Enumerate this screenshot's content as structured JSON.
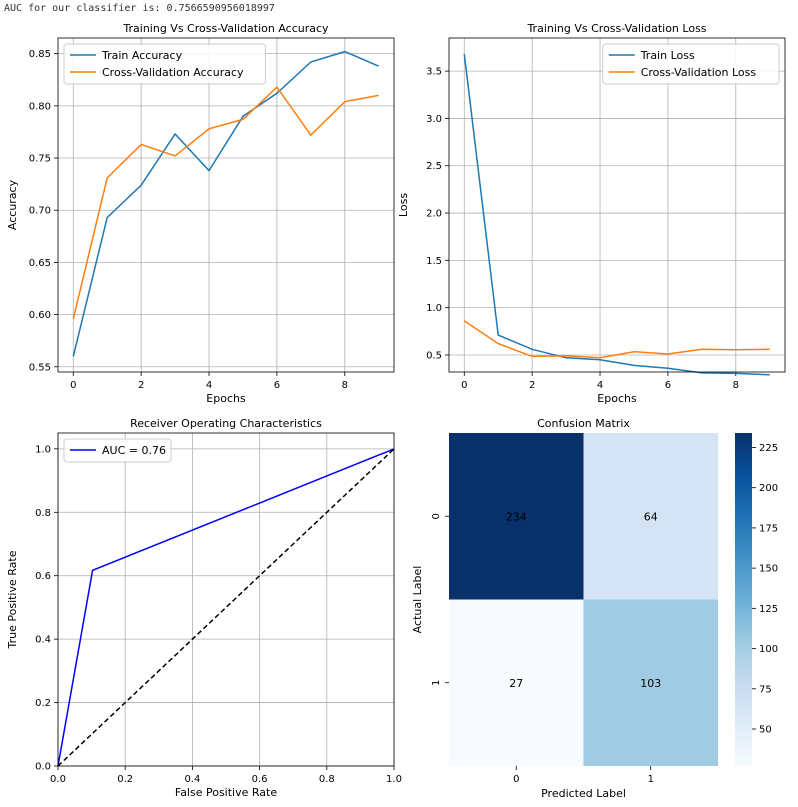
{
  "log_line": "AUC for our classifier is: 0.7566590956018997",
  "colors": {
    "blue": "#1f77b4",
    "orange": "#ff7f0e",
    "roc": "#0000ff",
    "diag": "#000000"
  },
  "chart_data": [
    {
      "type": "line",
      "title": "Training Vs Cross-Validation Accuracy",
      "xlabel": "Epochs",
      "ylabel": "Accuracy",
      "xlim": [
        -0.45,
        9.45
      ],
      "ylim": [
        0.545,
        0.865
      ],
      "xticks": [
        0,
        2,
        4,
        6,
        8
      ],
      "yticks": [
        0.55,
        0.6,
        0.65,
        0.7,
        0.75,
        0.8,
        0.85
      ],
      "ytick_labels": [
        "0.55",
        "0.60",
        "0.65",
        "0.70",
        "0.75",
        "0.80",
        "0.85"
      ],
      "grid": true,
      "legend_position": "upper-left",
      "x": [
        0,
        1,
        2,
        3,
        4,
        5,
        6,
        7,
        8,
        9
      ],
      "series": [
        {
          "name": "Train Accuracy",
          "color": "#1f77b4",
          "values": [
            0.56,
            0.693,
            0.724,
            0.773,
            0.738,
            0.79,
            0.812,
            0.842,
            0.852,
            0.838
          ]
        },
        {
          "name": "Cross-Validation Accuracy",
          "color": "#ff7f0e",
          "values": [
            0.596,
            0.731,
            0.763,
            0.752,
            0.778,
            0.787,
            0.818,
            0.772,
            0.804,
            0.81
          ]
        }
      ]
    },
    {
      "type": "line",
      "title": "Training Vs Cross-Validation Loss",
      "xlabel": "Epochs",
      "ylabel": "Loss",
      "xlim": [
        -0.45,
        9.45
      ],
      "ylim": [
        0.32,
        3.85
      ],
      "xticks": [
        0,
        2,
        4,
        6,
        8
      ],
      "yticks": [
        0.5,
        1.0,
        1.5,
        2.0,
        2.5,
        3.0,
        3.5
      ],
      "ytick_labels": [
        "0.5",
        "1.0",
        "1.5",
        "2.0",
        "2.5",
        "3.0",
        "3.5"
      ],
      "grid": true,
      "legend_position": "upper-right",
      "x": [
        0,
        1,
        2,
        3,
        4,
        5,
        6,
        7,
        8,
        9
      ],
      "series": [
        {
          "name": "Train Loss",
          "color": "#1f77b4",
          "values": [
            3.68,
            0.71,
            0.56,
            0.47,
            0.45,
            0.39,
            0.36,
            0.31,
            0.305,
            0.29
          ]
        },
        {
          "name": "Cross-Validation Loss",
          "color": "#ff7f0e",
          "values": [
            0.86,
            0.62,
            0.485,
            0.49,
            0.47,
            0.535,
            0.51,
            0.56,
            0.555,
            0.56
          ]
        }
      ]
    },
    {
      "type": "line",
      "title": "Receiver Operating Characteristics",
      "xlabel": "False Positive Rate",
      "ylabel": "True Positive Rate",
      "xlim": [
        0,
        1
      ],
      "ylim": [
        0,
        1.05
      ],
      "xticks": [
        0,
        0.2,
        0.4,
        0.6,
        0.8,
        1.0
      ],
      "xtick_labels": [
        "0.0",
        "0.2",
        "0.4",
        "0.6",
        "0.8",
        "1.0"
      ],
      "yticks": [
        0,
        0.2,
        0.4,
        0.6,
        0.8,
        1.0
      ],
      "ytick_labels": [
        "0.0",
        "0.2",
        "0.4",
        "0.6",
        "0.8",
        "1.0"
      ],
      "grid": true,
      "legend_position": "upper-left",
      "series": [
        {
          "name": "AUC = 0.76",
          "color": "#0000ff",
          "x": [
            0,
            0.103,
            1
          ],
          "values": [
            0,
            0.617,
            1
          ]
        },
        {
          "color": "#000000",
          "dashed": true,
          "x": [
            0,
            1
          ],
          "values": [
            0,
            1
          ]
        }
      ]
    },
    {
      "type": "heatmap",
      "title": "Confusion Matrix",
      "xlabel": "Predicted Label",
      "ylabel": "Actual Label",
      "row_labels": [
        "0",
        "1"
      ],
      "col_labels": [
        "0",
        "1"
      ],
      "values": [
        [
          234,
          64
        ],
        [
          27,
          103
        ]
      ],
      "colormap": "Blues",
      "colorbar_ticks": [
        50,
        75,
        100,
        125,
        150,
        175,
        200,
        225
      ],
      "colorbar_range": [
        27,
        234
      ]
    }
  ]
}
